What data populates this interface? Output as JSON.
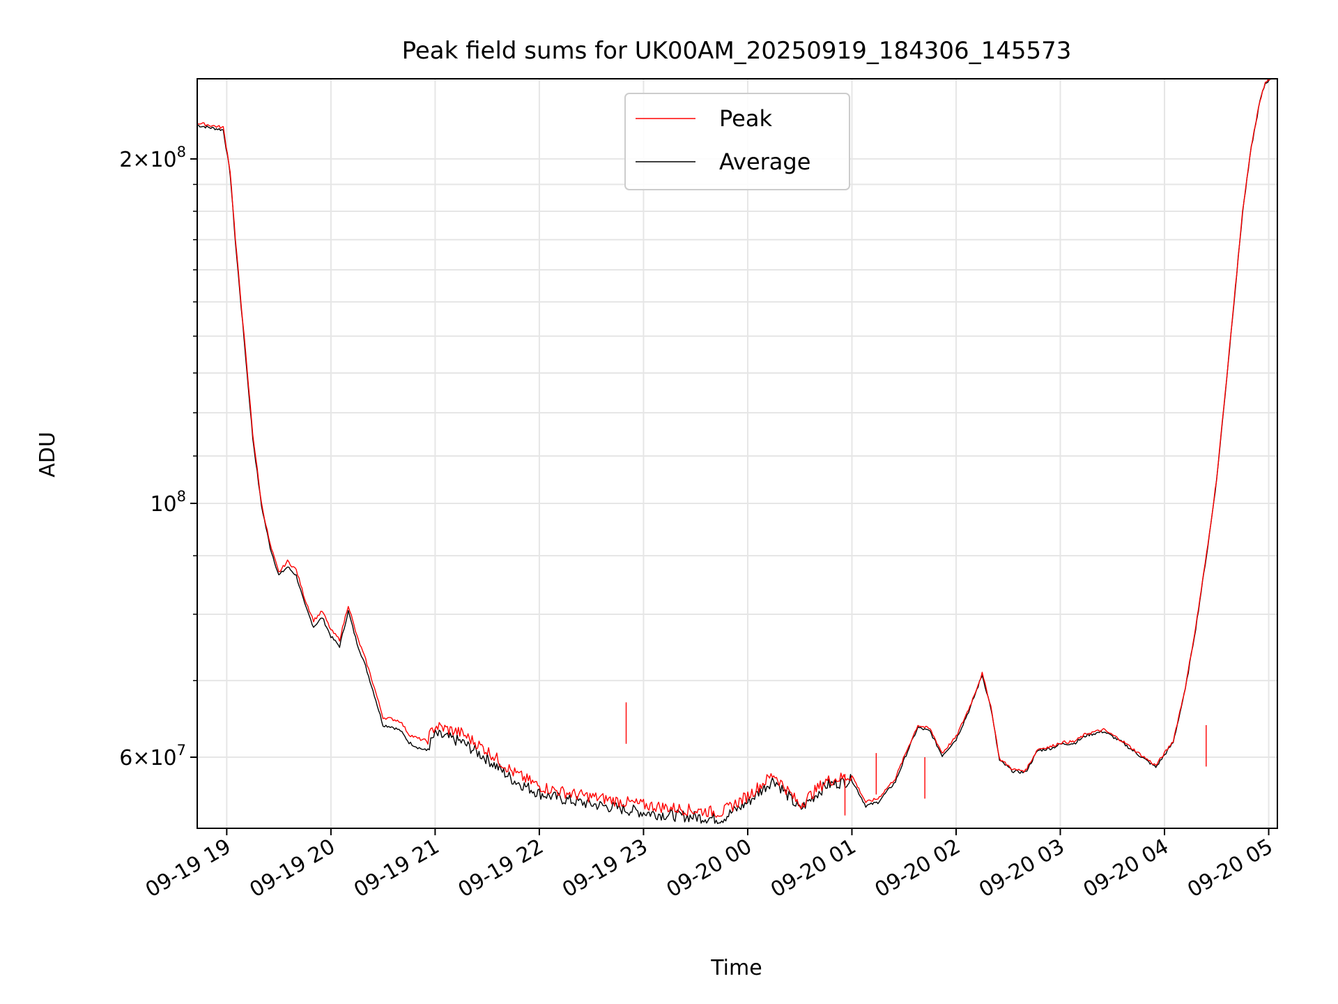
{
  "chart_data": {
    "type": "line",
    "title": "Peak field sums for UK00AM_20250919_184306_145573",
    "xlabel": "Time",
    "ylabel": "ADU",
    "yscale": "log",
    "xlim": [
      "2025-09-19 18:43",
      "2025-09-20 05:05"
    ],
    "ylim": [
      52000000,
      235000000
    ],
    "grid": true,
    "legend_position": "top-center",
    "x_ticks": [
      "09-19 19",
      "09-19 20",
      "09-19 21",
      "09-19 22",
      "09-19 23",
      "09-20 00",
      "09-20 01",
      "09-20 02",
      "09-20 03",
      "09-20 04",
      "09-20 05"
    ],
    "y_ticks": [
      {
        "value": 200000000,
        "base": "2×10",
        "exp": "8"
      },
      {
        "value": 100000000,
        "base": "10",
        "exp": "8"
      },
      {
        "value": 60000000,
        "base": "6×10",
        "exp": "7"
      }
    ],
    "series": [
      {
        "name": "Peak",
        "color": "#ff0000",
        "x": [
          "2025-09-19 18:43",
          "2025-09-19 18:58",
          "2025-09-19 19:02",
          "2025-09-19 19:05",
          "2025-09-19 19:10",
          "2025-09-19 19:15",
          "2025-09-19 19:20",
          "2025-09-19 19:25",
          "2025-09-19 19:30",
          "2025-09-19 19:35",
          "2025-09-19 19:40",
          "2025-09-19 19:45",
          "2025-09-19 19:50",
          "2025-09-19 19:55",
          "2025-09-19 20:00",
          "2025-09-19 20:05",
          "2025-09-19 20:10",
          "2025-09-19 20:15",
          "2025-09-19 20:20",
          "2025-09-19 20:25",
          "2025-09-19 20:30",
          "2025-09-19 20:35",
          "2025-09-19 20:40",
          "2025-09-19 20:45",
          "2025-09-19 20:50",
          "2025-09-19 20:55",
          "2025-09-19 21:00",
          "2025-09-19 21:15",
          "2025-09-19 21:30",
          "2025-09-19 21:45",
          "2025-09-19 22:00",
          "2025-09-19 22:10",
          "2025-09-19 22:20",
          "2025-09-19 22:30",
          "2025-09-19 22:40",
          "2025-09-19 22:50",
          "2025-09-19 23:00",
          "2025-09-19 23:15",
          "2025-09-19 23:30",
          "2025-09-19 23:45",
          "2025-09-20 00:00",
          "2025-09-20 00:15",
          "2025-09-20 00:30",
          "2025-09-20 00:45",
          "2025-09-20 01:00",
          "2025-09-20 01:08",
          "2025-09-20 01:15",
          "2025-09-20 01:25",
          "2025-09-20 01:32",
          "2025-09-20 01:38",
          "2025-09-20 01:45",
          "2025-09-20 01:52",
          "2025-09-20 02:00",
          "2025-09-20 02:08",
          "2025-09-20 02:15",
          "2025-09-20 02:20",
          "2025-09-20 02:25",
          "2025-09-20 02:33",
          "2025-09-20 02:40",
          "2025-09-20 02:47",
          "2025-09-20 02:55",
          "2025-09-20 03:00",
          "2025-09-20 03:08",
          "2025-09-20 03:15",
          "2025-09-20 03:25",
          "2025-09-20 03:35",
          "2025-09-20 03:45",
          "2025-09-20 03:55",
          "2025-09-20 04:05",
          "2025-09-20 04:12",
          "2025-09-20 04:18",
          "2025-09-20 04:25",
          "2025-09-20 04:30",
          "2025-09-20 04:35",
          "2025-09-20 04:40",
          "2025-09-20 04:45",
          "2025-09-20 04:50",
          "2025-09-20 04:55",
          "2025-09-20 04:58",
          "2025-09-20 05:02"
        ],
        "values": [
          215000000,
          213000000,
          195000000,
          170000000,
          140000000,
          115000000,
          100000000,
          92000000,
          87000000,
          89000000,
          87500000,
          82500000,
          79000000,
          80500000,
          77500000,
          76000000,
          81500000,
          76500000,
          73000000,
          69000000,
          65000000,
          64800000,
          64500000,
          62800000,
          62300000,
          62000000,
          63900000,
          63000000,
          60800000,
          58200000,
          56600000,
          56100000,
          55700000,
          55400000,
          55100000,
          54800000,
          54500000,
          54200000,
          53900000,
          53700000,
          55500000,
          58000000,
          54500000,
          57200000,
          57800000,
          54800000,
          55200000,
          57500000,
          61000000,
          64000000,
          63500000,
          60500000,
          62500000,
          66500000,
          71000000,
          66500000,
          59800000,
          58500000,
          58400000,
          61000000,
          61300000,
          61800000,
          61900000,
          62900000,
          63400000,
          62100000,
          60500000,
          59000000,
          62000000,
          69000000,
          78000000,
          92000000,
          105000000,
          125000000,
          150000000,
          180000000,
          205000000,
          225000000,
          233000000,
          236000000
        ]
      },
      {
        "name": "Average",
        "color": "#000000",
        "x": [
          "2025-09-19 18:43",
          "2025-09-19 18:58",
          "2025-09-19 19:02",
          "2025-09-19 19:05",
          "2025-09-19 19:10",
          "2025-09-19 19:15",
          "2025-09-19 19:20",
          "2025-09-19 19:25",
          "2025-09-19 19:30",
          "2025-09-19 19:35",
          "2025-09-19 19:40",
          "2025-09-19 19:45",
          "2025-09-19 19:50",
          "2025-09-19 19:55",
          "2025-09-19 20:00",
          "2025-09-19 20:05",
          "2025-09-19 20:10",
          "2025-09-19 20:15",
          "2025-09-19 20:20",
          "2025-09-19 20:25",
          "2025-09-19 20:30",
          "2025-09-19 20:35",
          "2025-09-19 20:40",
          "2025-09-19 20:45",
          "2025-09-19 20:50",
          "2025-09-19 20:55",
          "2025-09-19 21:00",
          "2025-09-19 21:15",
          "2025-09-19 21:30",
          "2025-09-19 21:45",
          "2025-09-19 22:00",
          "2025-09-19 22:10",
          "2025-09-19 22:20",
          "2025-09-19 22:30",
          "2025-09-19 22:40",
          "2025-09-19 22:50",
          "2025-09-19 23:00",
          "2025-09-19 23:15",
          "2025-09-19 23:30",
          "2025-09-19 23:45",
          "2025-09-20 00:00",
          "2025-09-20 00:15",
          "2025-09-20 00:30",
          "2025-09-20 00:45",
          "2025-09-20 01:00",
          "2025-09-20 01:08",
          "2025-09-20 01:15",
          "2025-09-20 01:25",
          "2025-09-20 01:32",
          "2025-09-20 01:38",
          "2025-09-20 01:45",
          "2025-09-20 01:52",
          "2025-09-20 02:00",
          "2025-09-20 02:08",
          "2025-09-20 02:15",
          "2025-09-20 02:20",
          "2025-09-20 02:25",
          "2025-09-20 02:33",
          "2025-09-20 02:40",
          "2025-09-20 02:47",
          "2025-09-20 02:55",
          "2025-09-20 03:00",
          "2025-09-20 03:08",
          "2025-09-20 03:15",
          "2025-09-20 03:25",
          "2025-09-20 03:35",
          "2025-09-20 03:45",
          "2025-09-20 03:55",
          "2025-09-20 04:05",
          "2025-09-20 04:12",
          "2025-09-20 04:18",
          "2025-09-20 04:25",
          "2025-09-20 04:30",
          "2025-09-20 04:35",
          "2025-09-20 04:40",
          "2025-09-20 04:45",
          "2025-09-20 04:50",
          "2025-09-20 04:55",
          "2025-09-20 04:58",
          "2025-09-20 05:02"
        ],
        "values": [
          214000000,
          212000000,
          194000000,
          169000000,
          139000000,
          114000000,
          99500000,
          91500000,
          86500000,
          88000000,
          86500000,
          81500000,
          78000000,
          79500000,
          76500000,
          75000000,
          80500000,
          75500000,
          72000000,
          68000000,
          64000000,
          63800000,
          63300000,
          61800000,
          61200000,
          60800000,
          62800000,
          61900000,
          59800000,
          57300000,
          55800000,
          55300000,
          54900000,
          54600000,
          54300000,
          54000000,
          53700000,
          53400000,
          53200000,
          53000000,
          54800000,
          57400000,
          54000000,
          56700000,
          57300000,
          54400000,
          54800000,
          57100000,
          60700000,
          63700000,
          63200000,
          60200000,
          62200000,
          66200000,
          70800000,
          66300000,
          59600000,
          58300000,
          58200000,
          60800000,
          61100000,
          61600000,
          61700000,
          62700000,
          63200000,
          61900000,
          60300000,
          58800000,
          61800000,
          68800000,
          77800000,
          91800000,
          104800000,
          124800000,
          149800000,
          179800000,
          204800000,
          224800000,
          232800000,
          235800000
        ]
      }
    ]
  }
}
